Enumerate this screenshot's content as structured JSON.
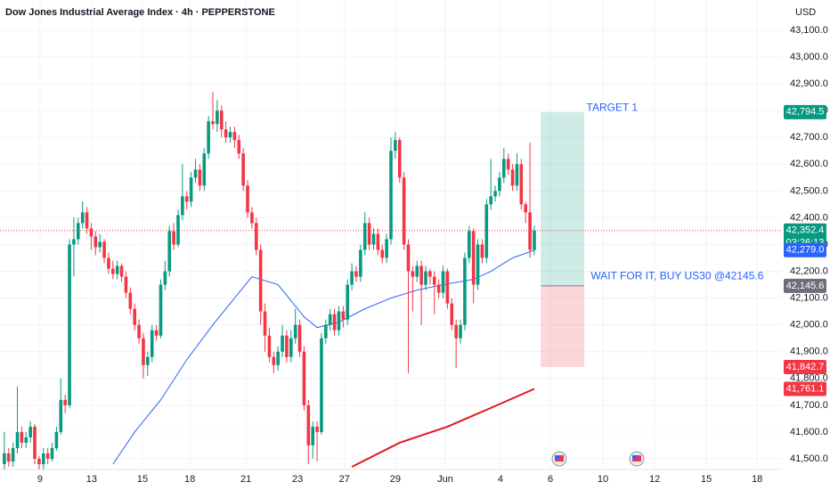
{
  "chart_data": {
    "type": "candlestick",
    "title": "Dow Jones Industrial Average Index · 4h · PEPPERSTONE",
    "currency": "USD",
    "up_color": "#089981",
    "down_color": "#f23645",
    "xlim": [
      0,
      180
    ],
    "ylim": [
      41460,
      43213
    ],
    "xticks": [
      {
        "value": 9.2,
        "label": "9"
      },
      {
        "value": 21.1,
        "label": "13"
      },
      {
        "value": 32.8,
        "label": "15"
      },
      {
        "value": 43.7,
        "label": "18"
      },
      {
        "value": 56.6,
        "label": "21"
      },
      {
        "value": 68.5,
        "label": "23"
      },
      {
        "value": 79.3,
        "label": "27"
      },
      {
        "value": 91,
        "label": "29"
      },
      {
        "value": 102.5,
        "label": "Jun"
      },
      {
        "value": 115.2,
        "label": "4"
      },
      {
        "value": 126.7,
        "label": "6"
      },
      {
        "value": 138.8,
        "label": "10"
      },
      {
        "value": 150.7,
        "label": "12"
      },
      {
        "value": 162.6,
        "label": "15"
      },
      {
        "value": 174.3,
        "label": "18"
      }
    ],
    "yticks": [
      {
        "value": 41500,
        "label": "41,500.0"
      },
      {
        "value": 41600,
        "label": "41,600.0"
      },
      {
        "value": 41700,
        "label": "41,700.0"
      },
      {
        "value": 41800,
        "label": "41,800.0"
      },
      {
        "value": 41900,
        "label": "41,900.0"
      },
      {
        "value": 42000,
        "label": "42,000.0"
      },
      {
        "value": 42100,
        "label": "42,100.0"
      },
      {
        "value": 42200,
        "label": "42,200.0"
      },
      {
        "value": 42300,
        "label": "42,300.0"
      },
      {
        "value": 42400,
        "label": "42,400.0"
      },
      {
        "value": 42500,
        "label": "42,500.0"
      },
      {
        "value": 42600,
        "label": "42,600.0"
      },
      {
        "value": 42700,
        "label": "42,700.0"
      },
      {
        "value": 42800,
        "label": "42,800.0"
      },
      {
        "value": 42900,
        "label": "42,900.0"
      },
      {
        "value": 43000,
        "label": "43,000.0"
      },
      {
        "value": 43100,
        "label": "43,100.0"
      }
    ],
    "ohlc": [
      [
        41480,
        41600,
        41450,
        41520
      ],
      [
        41520,
        41540,
        41470,
        41490
      ],
      [
        41490,
        41560,
        41470,
        41540
      ],
      [
        41540,
        41770,
        41520,
        41600
      ],
      [
        41600,
        41620,
        41540,
        41560
      ],
      [
        41560,
        41600,
        41540,
        41580
      ],
      [
        41580,
        41640,
        41560,
        41620
      ],
      [
        41620,
        41630,
        41480,
        41500
      ],
      [
        41500,
        41510,
        41460,
        41480
      ],
      [
        41480,
        41540,
        41460,
        41520
      ],
      [
        41520,
        41540,
        41480,
        41500
      ],
      [
        41500,
        41560,
        41490,
        41540
      ],
      [
        41540,
        41620,
        41530,
        41600
      ],
      [
        41600,
        41800,
        41590,
        41720
      ],
      [
        41720,
        41740,
        41670,
        41700
      ],
      [
        41700,
        42320,
        41690,
        42300
      ],
      [
        42300,
        42400,
        42180,
        42320
      ],
      [
        42320,
        42400,
        42300,
        42380
      ],
      [
        42380,
        42460,
        42360,
        42420
      ],
      [
        42420,
        42440,
        42340,
        42360
      ],
      [
        42360,
        42380,
        42280,
        42330
      ],
      [
        42330,
        42350,
        42260,
        42290
      ],
      [
        42290,
        42340,
        42270,
        42310
      ],
      [
        42310,
        42320,
        42230,
        42250
      ],
      [
        42250,
        42270,
        42190,
        42210
      ],
      [
        42210,
        42240,
        42170,
        42190
      ],
      [
        42190,
        42240,
        42170,
        42220
      ],
      [
        42220,
        42230,
        42160,
        42180
      ],
      [
        42180,
        42200,
        42100,
        42120
      ],
      [
        42120,
        42140,
        42040,
        42060
      ],
      [
        42060,
        42080,
        41980,
        42000
      ],
      [
        42000,
        42020,
        41930,
        41950
      ],
      [
        41950,
        41970,
        41800,
        41850
      ],
      [
        41850,
        41900,
        41810,
        41880
      ],
      [
        41880,
        42000,
        41860,
        41980
      ],
      [
        41980,
        42000,
        41940,
        41960
      ],
      [
        41960,
        42170,
        41950,
        42150
      ],
      [
        42150,
        42240,
        42130,
        42200
      ],
      [
        42200,
        42370,
        42180,
        42350
      ],
      [
        42350,
        42380,
        42280,
        42300
      ],
      [
        42300,
        42430,
        42290,
        42410
      ],
      [
        42410,
        42600,
        42390,
        42480
      ],
      [
        42480,
        42500,
        42430,
        42460
      ],
      [
        42460,
        42570,
        42440,
        42550
      ],
      [
        42550,
        42620,
        42530,
        42580
      ],
      [
        42580,
        42600,
        42500,
        42520
      ],
      [
        42520,
        42660,
        42500,
        42640
      ],
      [
        42640,
        42780,
        42620,
        42760
      ],
      [
        42760,
        42870,
        42730,
        42750
      ],
      [
        42750,
        42840,
        42720,
        42800
      ],
      [
        42800,
        42820,
        42700,
        42730
      ],
      [
        42730,
        42760,
        42680,
        42700
      ],
      [
        42700,
        42740,
        42680,
        42720
      ],
      [
        42720,
        42740,
        42660,
        42690
      ],
      [
        42690,
        42710,
        42620,
        42640
      ],
      [
        42640,
        42660,
        42500,
        42520
      ],
      [
        42520,
        42540,
        42400,
        42420
      ],
      [
        42420,
        42440,
        42360,
        42380
      ],
      [
        42380,
        42400,
        42260,
        42280
      ],
      [
        42280,
        42300,
        42000,
        42050
      ],
      [
        42050,
        42080,
        41900,
        41960
      ],
      [
        41960,
        41990,
        41860,
        41880
      ],
      [
        41880,
        41900,
        41820,
        41850
      ],
      [
        41850,
        41920,
        41830,
        41900
      ],
      [
        41900,
        42000,
        41880,
        41960
      ],
      [
        41960,
        41980,
        41860,
        41880
      ],
      [
        41880,
        41980,
        41860,
        41950
      ],
      [
        41950,
        42060,
        41930,
        42000
      ],
      [
        42000,
        42020,
        41880,
        41900
      ],
      [
        41900,
        41920,
        41680,
        41700
      ],
      [
        41700,
        41720,
        41480,
        41550
      ],
      [
        41550,
        41640,
        41500,
        41620
      ],
      [
        41620,
        41640,
        41490,
        41600
      ],
      [
        41600,
        41970,
        41590,
        41950
      ],
      [
        41950,
        42020,
        41930,
        42000
      ],
      [
        42000,
        42060,
        41980,
        42040
      ],
      [
        42040,
        42060,
        41960,
        41980
      ],
      [
        41980,
        42070,
        41960,
        42050
      ],
      [
        42050,
        42070,
        41990,
        42020
      ],
      [
        42020,
        42170,
        42000,
        42150
      ],
      [
        42150,
        42230,
        42130,
        42200
      ],
      [
        42200,
        42220,
        42160,
        42180
      ],
      [
        42180,
        42300,
        42160,
        42280
      ],
      [
        42280,
        42420,
        42260,
        42380
      ],
      [
        42380,
        42400,
        42280,
        42300
      ],
      [
        42300,
        42360,
        42280,
        42340
      ],
      [
        42340,
        42360,
        42260,
        42280
      ],
      [
        42280,
        42300,
        42230,
        42250
      ],
      [
        42250,
        42340,
        42230,
        42320
      ],
      [
        42320,
        42700,
        42300,
        42650
      ],
      [
        42650,
        42720,
        42620,
        42690
      ],
      [
        42690,
        42700,
        42530,
        42550
      ],
      [
        42550,
        42570,
        42280,
        42300
      ],
      [
        42300,
        42320,
        41820,
        42200
      ],
      [
        42200,
        42220,
        42050,
        42180
      ],
      [
        42180,
        42240,
        42160,
        42220
      ],
      [
        42220,
        42240,
        42000,
        42150
      ],
      [
        42150,
        42220,
        42130,
        42200
      ],
      [
        42200,
        42210,
        42150,
        42180
      ],
      [
        42180,
        42200,
        42040,
        42150
      ],
      [
        42150,
        42170,
        42100,
        42120
      ],
      [
        42120,
        42220,
        42100,
        42200
      ],
      [
        42200,
        42210,
        42060,
        42080
      ],
      [
        42080,
        42100,
        41980,
        42000
      ],
      [
        42000,
        42020,
        41840,
        41950
      ],
      [
        41950,
        42020,
        41930,
        42000
      ],
      [
        42000,
        42270,
        41980,
        42250
      ],
      [
        42250,
        42370,
        42230,
        42350
      ],
      [
        42350,
        42360,
        42080,
        42150
      ],
      [
        42150,
        42320,
        42130,
        42300
      ],
      [
        42300,
        42320,
        42230,
        42250
      ],
      [
        42250,
        42470,
        42230,
        42450
      ],
      [
        42450,
        42620,
        42430,
        42480
      ],
      [
        42480,
        42520,
        42460,
        42500
      ],
      [
        42500,
        42570,
        42480,
        42550
      ],
      [
        42550,
        42660,
        42530,
        42620
      ],
      [
        42620,
        42640,
        42560,
        42580
      ],
      [
        42580,
        42600,
        42500,
        42520
      ],
      [
        42520,
        42640,
        42500,
        42600
      ],
      [
        42600,
        42620,
        42430,
        42450
      ],
      [
        42450,
        42460,
        42380,
        42420
      ],
      [
        42420,
        42680,
        42250,
        42280
      ],
      [
        42280,
        42370,
        42260,
        42352.4
      ]
    ],
    "lines": [
      {
        "color": "#2962ff",
        "x": [
          26,
          31,
          37,
          43,
          49,
          55,
          58,
          64,
          70,
          73,
          78,
          84,
          90,
          96,
          102,
          109,
          113,
          118,
          123
        ],
        "values": [
          41480,
          41600,
          41720,
          41870,
          42000,
          42120,
          42180,
          42150,
          42030,
          41990,
          42010,
          42060,
          42100,
          42130,
          42150,
          42170,
          42200,
          42250,
          42279
        ]
      },
      {
        "color": "#e3171f",
        "x": [
          81,
          92,
          103,
          113,
          123
        ],
        "values": [
          41470,
          41560,
          41620,
          41690,
          41761.1
        ]
      }
    ],
    "position": {
      "entry": 42145.6,
      "target": 42794.5,
      "stop": 41842.7,
      "xrange": [
        124.5,
        134.5
      ],
      "profit_color": "rgba(8,153,129,0.2)",
      "loss_color": "rgba(242,54,69,0.2)"
    },
    "annotations": [
      {
        "text": "TARGET 1",
        "x": 135,
        "y": 42810,
        "color": "#2962ff"
      },
      {
        "text": "WAIT FOR IT, BUY US30 @42145.6",
        "x": 136,
        "y": 42180,
        "color": "#2962ff"
      }
    ],
    "price_labels": [
      {
        "value": 42794.5,
        "label": "42,794.5",
        "color": "#089981"
      },
      {
        "value": 42352.4,
        "label": "42,352.4",
        "color": "#089981",
        "countdown": "03:26:13"
      },
      {
        "value": 42279.0,
        "label": "42,279.0",
        "color": "#2962ff"
      },
      {
        "value": 42145.6,
        "label": "42,145.6",
        "color": "#6b6e78"
      },
      {
        "value": 41842.7,
        "label": "41,842.7",
        "color": "#f23645"
      },
      {
        "value": 41761.1,
        "label": "41,761.1",
        "color": "#f23645"
      }
    ]
  }
}
